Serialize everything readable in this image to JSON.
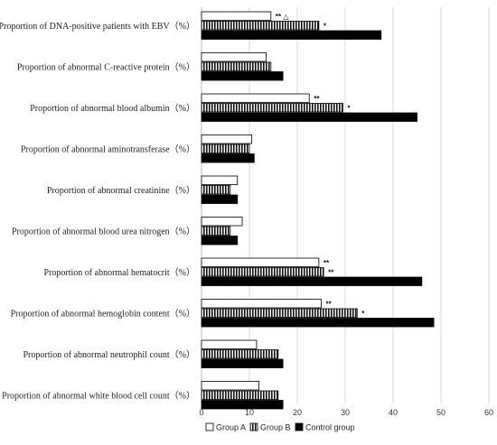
{
  "chart_data": {
    "type": "bar",
    "orientation": "horizontal",
    "title": "",
    "xlabel": "",
    "ylabel": "",
    "xlim": [
      0,
      60
    ],
    "xticks": [
      0,
      10,
      20,
      30,
      40,
      50,
      60
    ],
    "grid": true,
    "legend_position": "bottom",
    "categories": [
      "Proportion of DNA-positive patients with EBV（%）",
      "Proportion of abnormal  C-reactive protein（%）",
      "Proportion of abnormal blood albumin（%）",
      "Proportion of abnormal aminotransferase（%）",
      "Proportion of abnormal creatinine（%）",
      "Proportion of abnormal  blood urea nitrogen（%）",
      "Proportion of abnormal hematocrit（%）",
      "Proportion of abnormal hemoglobin content（%）",
      "Proportion  of abnormal neutrophil count（%）",
      "Proportion of abnormal white blood cell count（%）"
    ],
    "series": [
      {
        "name": "Group A",
        "style": "hollow",
        "values": [
          14.5,
          13.5,
          22.5,
          10.5,
          7.5,
          8.5,
          24.5,
          25.0,
          11.5,
          12.0
        ],
        "annotations": [
          "** △",
          "",
          "**",
          "",
          "",
          "",
          "**",
          "**",
          "",
          ""
        ]
      },
      {
        "name": "Group B",
        "style": "striped",
        "values": [
          24.5,
          14.5,
          29.5,
          10.0,
          6.0,
          6.0,
          25.5,
          32.5,
          16.0,
          16.0
        ],
        "annotations": [
          "*",
          "",
          "*",
          "",
          "",
          "",
          "**",
          "*",
          "",
          ""
        ]
      },
      {
        "name": "Control group",
        "style": "solid",
        "values": [
          37.5,
          17.0,
          45.0,
          11.0,
          7.5,
          7.5,
          46.0,
          48.5,
          17.0,
          17.0
        ],
        "annotations": [
          "",
          "",
          "",
          "",
          "",
          "",
          "",
          "",
          "",
          ""
        ]
      }
    ]
  }
}
